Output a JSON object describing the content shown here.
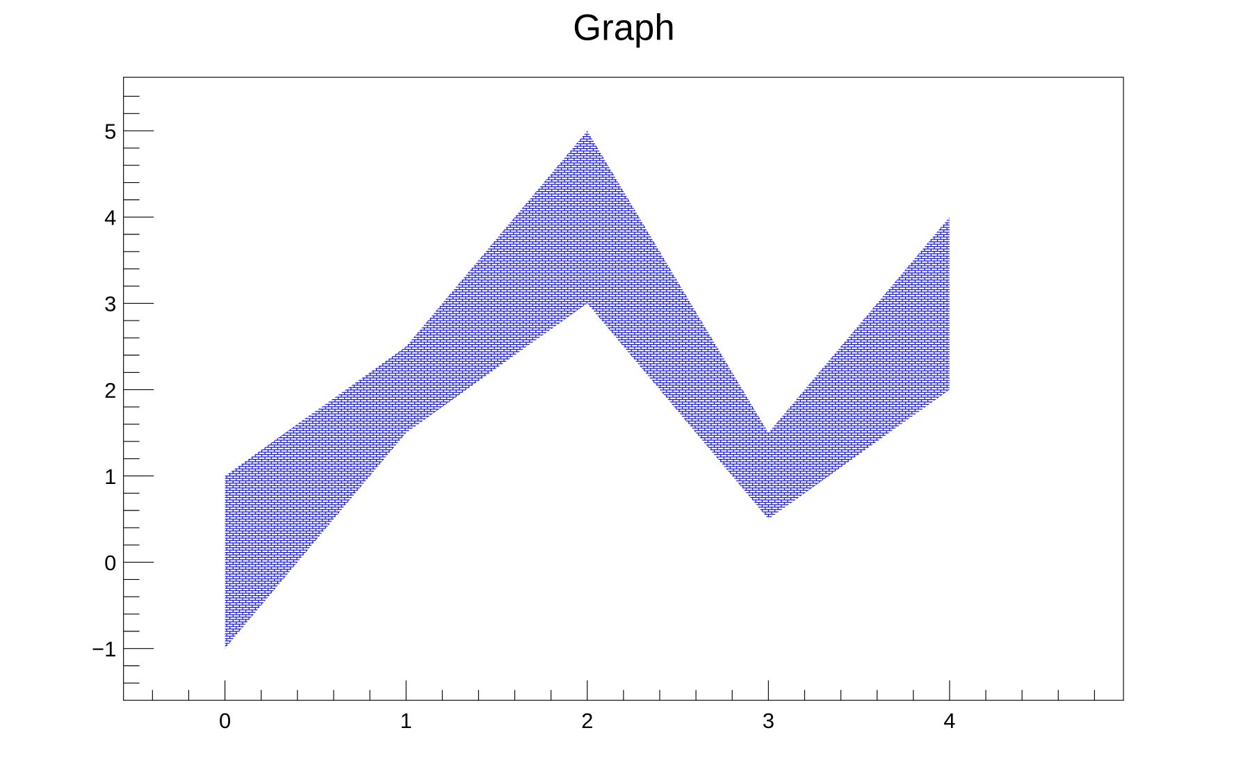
{
  "chart_data": {
    "type": "area",
    "title": "Graph",
    "xlabel": "",
    "ylabel": "",
    "xlim": [
      -0.56,
      4.96
    ],
    "ylim": [
      -1.6,
      5.62
    ],
    "x_ticks": [
      0,
      1,
      2,
      3,
      4
    ],
    "x_tick_labels": [
      "0",
      "1",
      "2",
      "3",
      "4"
    ],
    "y_ticks": [
      -1,
      0,
      1,
      2,
      3,
      4,
      5
    ],
    "y_tick_labels": [
      "−1",
      "0",
      "1",
      "2",
      "3",
      "4",
      "5"
    ],
    "grid": false,
    "x": [
      0,
      1,
      2,
      3,
      4
    ],
    "series": [
      {
        "role": "upper",
        "values": [
          1,
          2.5,
          5,
          1.5,
          4
        ]
      },
      {
        "role": "lower",
        "values": [
          -1,
          1.5,
          3,
          0.5,
          2
        ]
      }
    ],
    "fill_color": "#0000ff",
    "fill_style": "hatched pattern"
  }
}
